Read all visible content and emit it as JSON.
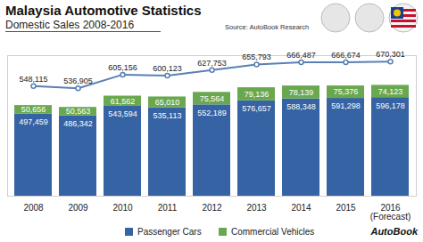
{
  "chart_data": {
    "type": "bar",
    "stacked": true,
    "title": "Malaysia Automotive Statistics",
    "subtitle": "Domestic Sales 2008-2016",
    "source": "Source: AutoBook Research",
    "brand": "AutoBook",
    "categories": [
      "2008",
      "2009",
      "2010",
      "2011",
      "2012",
      "2013",
      "2014",
      "2015",
      "2016\n(Forecast)"
    ],
    "series": [
      {
        "name": "Passenger Cars",
        "color": "#3563a3",
        "values": [
          497459,
          486342,
          543594,
          535113,
          552189,
          576657,
          588348,
          591298,
          596178
        ],
        "value_labels": [
          "497,459",
          "486,342",
          "543,594",
          "535,113",
          "552,189",
          "576,657",
          "588,348",
          "591,298",
          "596,178"
        ]
      },
      {
        "name": "Commercial Vehicles",
        "color": "#6aa84f",
        "values": [
          50656,
          50563,
          61562,
          65010,
          75564,
          79136,
          78139,
          75376,
          74123
        ],
        "value_labels": [
          "50,656",
          "50,563",
          "61,562",
          "65,010",
          "75,564",
          "79,136",
          "78,139",
          "75,376",
          "74,123"
        ]
      },
      {
        "type": "line",
        "axis": "y2",
        "color": "#5a80b4",
        "values": [
          548115,
          536905,
          605156,
          600123,
          627753,
          655793,
          666487,
          666674,
          670301
        ],
        "value_labels": [
          "548,115",
          "536,905",
          "605,156",
          "600,123",
          "627,753",
          "655,793",
          "666,487",
          "666,674",
          "670,301"
        ]
      }
    ],
    "ylim": [
      0,
      850000
    ],
    "yticks": [],
    "y2lim": [
      0,
      700000
    ],
    "y2ticks": [],
    "data_labels": true,
    "tick_labels": "x",
    "legend": "bottom",
    "grid": false
  }
}
